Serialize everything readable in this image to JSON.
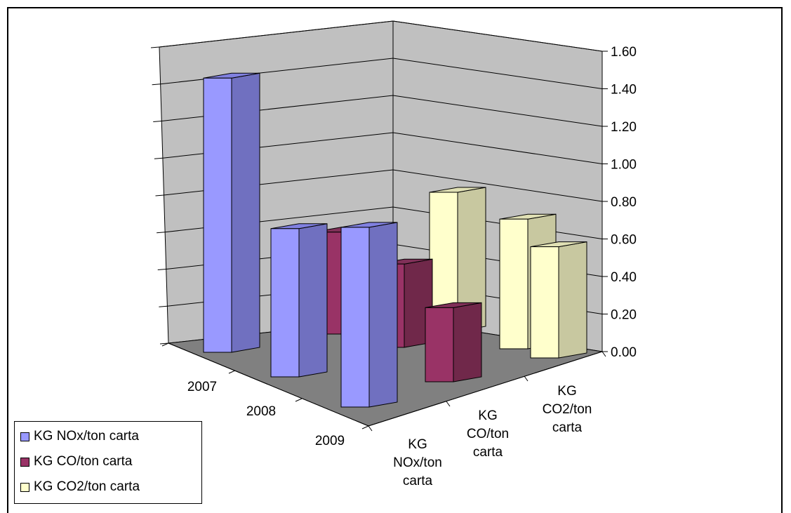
{
  "colors": {
    "nox_front": "#9999ff",
    "nox_side": "#7070c0",
    "nox_top": "#8080e0",
    "co_front": "#993366",
    "co_side": "#70284a",
    "co_top": "#803058",
    "co2_front": "#ffffcc",
    "co2_side": "#c8c8a0",
    "co2_top": "#e0e0b4",
    "wall": "#c0c0c0",
    "floor": "#808080"
  },
  "chart_data": {
    "type": "bar",
    "subtype": "3d-column",
    "title": "",
    "years": [
      "2007",
      "2008",
      "2009"
    ],
    "categories": [
      "KG NOx/ton carta",
      "KG CO/ton carta",
      "KG CO2/ton carta"
    ],
    "category_tick_labels": [
      [
        "KG",
        "NOx/ton",
        "carta"
      ],
      [
        "KG",
        "CO/ton",
        "carta"
      ],
      [
        "KG",
        "CO2/ton",
        "carta"
      ]
    ],
    "series": [
      {
        "name": "KG NOx/ton carta",
        "values": [
          1.48,
          0.8,
          0.97
        ]
      },
      {
        "name": "KG CO/ton carta",
        "values": [
          0.55,
          0.45,
          0.4
        ]
      },
      {
        "name": "KG CO2/ton carta",
        "values": [
          0.75,
          0.7,
          0.6
        ]
      }
    ],
    "yticks": [
      "0.00",
      "0.20",
      "0.40",
      "0.60",
      "0.80",
      "1.00",
      "1.20",
      "1.40",
      "1.60"
    ],
    "ylim": [
      0,
      1.6
    ],
    "grid": true,
    "legend": "bottom-left"
  }
}
